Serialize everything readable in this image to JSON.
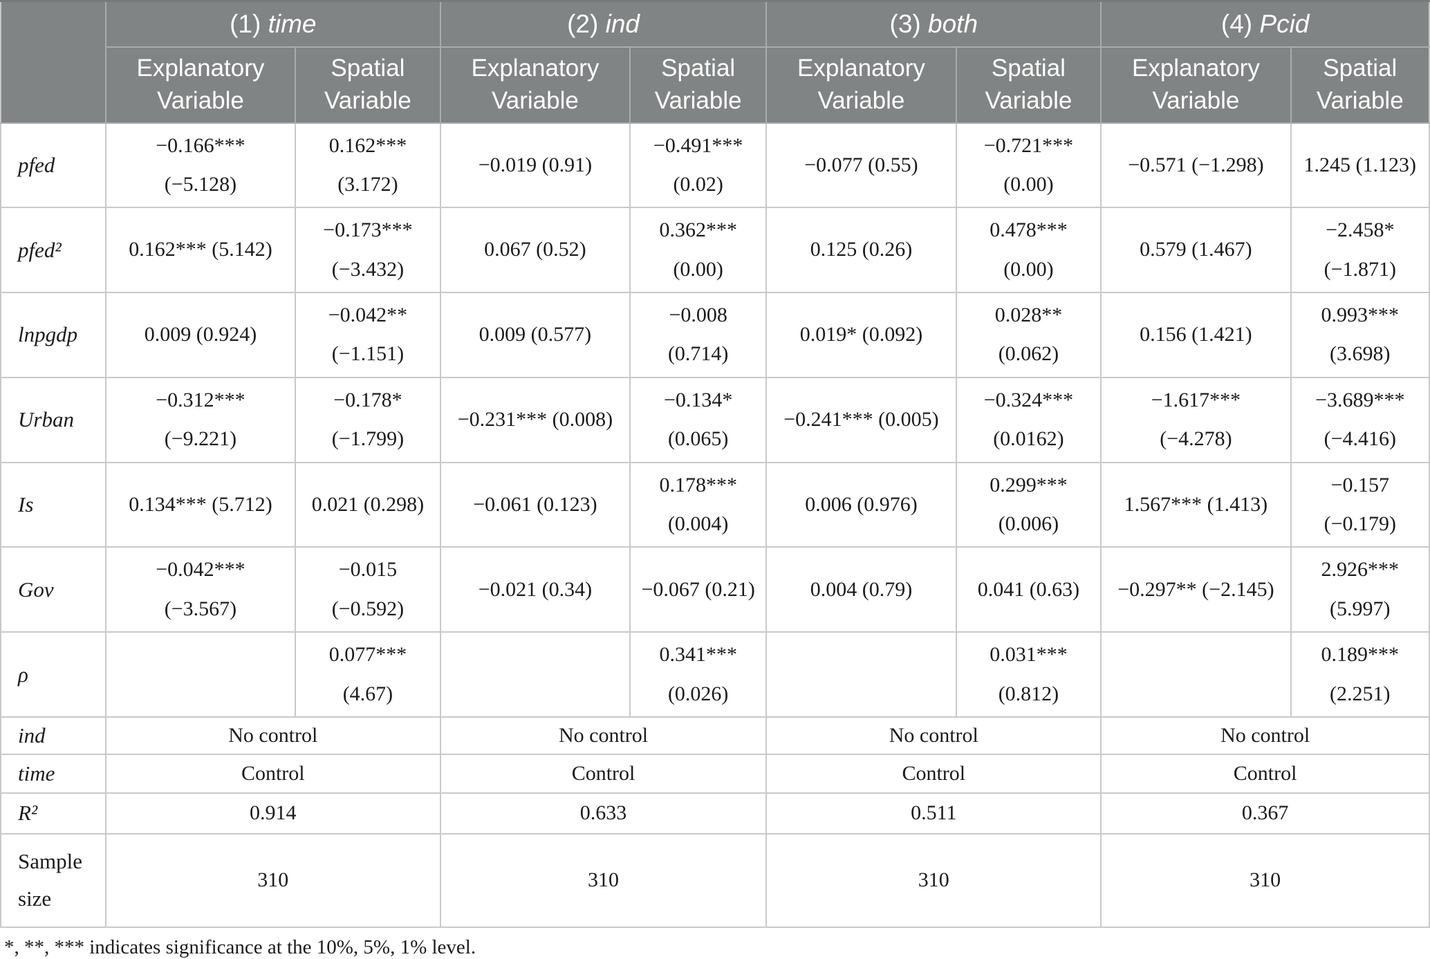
{
  "colors": {
    "header_bg": "#818484",
    "header_text": "#ffffff",
    "body_text": "#1b1b1b",
    "grid_line": "#c9c9c9",
    "header_grid_line": "#a9acac"
  },
  "header": {
    "models": [
      {
        "num": "(1)",
        "name": "time"
      },
      {
        "num": "(2)",
        "name": "ind"
      },
      {
        "num": "(3)",
        "name": "both"
      },
      {
        "num": "(4)",
        "name": "Pcid"
      }
    ],
    "sub_explanatory": {
      "line1": "Explanatory",
      "line2": "Variable"
    },
    "sub_spatial": {
      "line1": "Spatial",
      "line2": "Variable"
    }
  },
  "rows": [
    {
      "label": "pfed",
      "cells": [
        [
          "−0.166***",
          "(−5.128)"
        ],
        [
          "0.162***",
          "(3.172)"
        ],
        [
          "−0.019 (0.91)"
        ],
        [
          "−0.491***",
          "(0.02)"
        ],
        [
          "−0.077 (0.55)"
        ],
        [
          "−0.721***",
          "(0.00)"
        ],
        [
          "−0.571 (−1.298)"
        ],
        [
          "1.245 (1.123)"
        ]
      ]
    },
    {
      "label": "pfed²",
      "cells": [
        [
          "0.162*** (5.142)"
        ],
        [
          "−0.173***",
          "(−3.432)"
        ],
        [
          "0.067 (0.52)"
        ],
        [
          "0.362***",
          "(0.00)"
        ],
        [
          "0.125 (0.26)"
        ],
        [
          "0.478***",
          "(0.00)"
        ],
        [
          "0.579 (1.467)"
        ],
        [
          "−2.458*",
          "(−1.871)"
        ]
      ]
    },
    {
      "label": "lnpgdp",
      "cells": [
        [
          "0.009 (0.924)"
        ],
        [
          "−0.042**",
          "(−1.151)"
        ],
        [
          "0.009 (0.577)"
        ],
        [
          "−0.008",
          "(0.714)"
        ],
        [
          "0.019* (0.092)"
        ],
        [
          "0.028**",
          "(0.062)"
        ],
        [
          "0.156 (1.421)"
        ],
        [
          "0.993***",
          "(3.698)"
        ]
      ]
    },
    {
      "label": "Urban",
      "cells": [
        [
          "−0.312***",
          "(−9.221)"
        ],
        [
          "−0.178*",
          "(−1.799)"
        ],
        [
          "−0.231*** (0.008)"
        ],
        [
          "−0.134*",
          "(0.065)"
        ],
        [
          "−0.241*** (0.005)"
        ],
        [
          "−0.324***",
          "(0.0162)"
        ],
        [
          "−1.617***",
          "(−4.278)"
        ],
        [
          "−3.689***",
          "(−4.416)"
        ]
      ]
    },
    {
      "label": "Is",
      "cells": [
        [
          "0.134*** (5.712)"
        ],
        [
          "0.021 (0.298)"
        ],
        [
          "−0.061 (0.123)"
        ],
        [
          "0.178***",
          "(0.004)"
        ],
        [
          "0.006 (0.976)"
        ],
        [
          "0.299***",
          "(0.006)"
        ],
        [
          "1.567*** (1.413)"
        ],
        [
          "−0.157",
          "(−0.179)"
        ]
      ]
    },
    {
      "label": "Gov",
      "cells": [
        [
          "−0.042***",
          "(−3.567)"
        ],
        [
          "−0.015",
          "(−0.592)"
        ],
        [
          "−0.021 (0.34)"
        ],
        [
          "−0.067 (0.21)"
        ],
        [
          "0.004 (0.79)"
        ],
        [
          "0.041 (0.63)"
        ],
        [
          "−0.297** (−2.145)"
        ],
        [
          "2.926***",
          "(5.997)"
        ]
      ]
    },
    {
      "label": "ρ",
      "cells": [
        [],
        [
          "0.077***",
          "(4.67)"
        ],
        [],
        [
          "0.341***",
          "(0.026)"
        ],
        [],
        [
          "0.031***",
          "(0.812)"
        ],
        [],
        [
          "0.189***",
          "(2.251)"
        ]
      ]
    }
  ],
  "summary_rows": {
    "ind": {
      "label": "ind",
      "values": [
        "No control",
        "No control",
        "No control",
        "No control"
      ]
    },
    "time": {
      "label": "time",
      "values": [
        "Control",
        "Control",
        "Control",
        "Control"
      ]
    },
    "r2": {
      "label": "R²",
      "values": [
        "0.914",
        "0.633",
        "0.511",
        "0.367"
      ]
    },
    "sample": {
      "label": "Sample size",
      "values": [
        "310",
        "310",
        "310",
        "310"
      ]
    }
  },
  "footnote": "*, **, *** indicates significance at the 10%, 5%, 1% level."
}
